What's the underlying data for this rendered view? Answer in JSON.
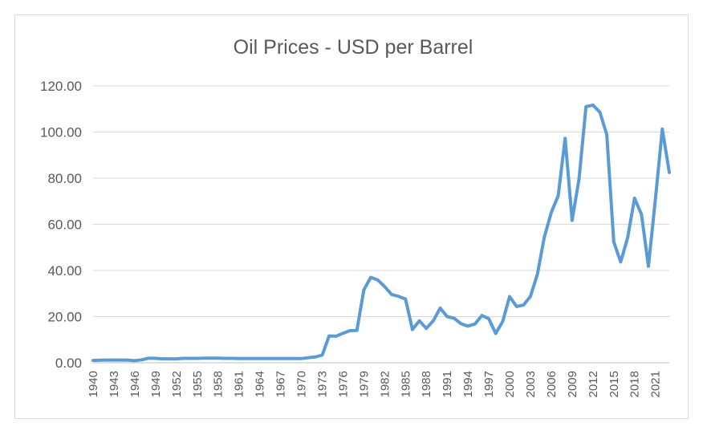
{
  "colors": {
    "series": "#5b9bd5",
    "grid": "#d9d9d9",
    "text": "#595959"
  },
  "chart_data": {
    "type": "line",
    "title": "Oil Prices - USD per Barrel",
    "xlabel": "",
    "ylabel": "",
    "ylim": [
      0,
      120
    ],
    "yticks": [
      "0.00",
      "20.00",
      "40.00",
      "60.00",
      "80.00",
      "100.00",
      "120.00"
    ],
    "xtick_labels": [
      "1940",
      "1943",
      "1946",
      "1949",
      "1952",
      "1955",
      "1958",
      "1961",
      "1964",
      "1967",
      "1970",
      "1973",
      "1976",
      "1979",
      "1982",
      "1985",
      "1988",
      "1991",
      "1994",
      "1997",
      "2000",
      "2003",
      "2006",
      "2009",
      "2012",
      "2015",
      "2018",
      "2021"
    ],
    "grid": true,
    "legend": "none",
    "x": [
      1940,
      1941,
      1942,
      1943,
      1944,
      1945,
      1946,
      1947,
      1948,
      1949,
      1950,
      1951,
      1952,
      1953,
      1954,
      1955,
      1956,
      1957,
      1958,
      1959,
      1960,
      1961,
      1962,
      1963,
      1964,
      1965,
      1966,
      1967,
      1968,
      1969,
      1970,
      1971,
      1972,
      1973,
      1974,
      1975,
      1976,
      1977,
      1978,
      1979,
      1980,
      1981,
      1982,
      1983,
      1984,
      1985,
      1986,
      1987,
      1988,
      1989,
      1990,
      1991,
      1992,
      1993,
      1994,
      1995,
      1996,
      1997,
      1998,
      1999,
      2000,
      2001,
      2002,
      2003,
      2004,
      2005,
      2006,
      2007,
      2008,
      2009,
      2010,
      2011,
      2012,
      2013,
      2014,
      2015,
      2016,
      2017,
      2018,
      2019,
      2020,
      2021,
      2022,
      2023
    ],
    "series": [
      {
        "values": [
          1.0,
          1.1,
          1.2,
          1.2,
          1.2,
          1.1,
          0.9,
          1.3,
          2.0,
          1.9,
          1.7,
          1.7,
          1.7,
          1.9,
          1.9,
          1.9,
          2.0,
          2.0,
          2.0,
          1.9,
          1.9,
          1.8,
          1.8,
          1.8,
          1.8,
          1.8,
          1.8,
          1.8,
          1.8,
          1.8,
          1.8,
          2.2,
          2.5,
          3.3,
          11.6,
          11.5,
          12.8,
          13.9,
          14.0,
          31.6,
          37.0,
          35.9,
          33.0,
          29.6,
          28.8,
          27.6,
          14.4,
          18.2,
          14.9,
          18.2,
          23.7,
          20.0,
          19.3,
          16.9,
          15.9,
          16.8,
          20.5,
          19.1,
          12.7,
          17.9,
          28.7,
          24.4,
          25.0,
          28.8,
          38.3,
          54.5,
          65.1,
          72.4,
          97.3,
          61.7,
          79.6,
          111.0,
          111.7,
          108.6,
          98.9,
          52.4,
          43.7,
          54.2,
          71.3,
          64.2,
          41.8,
          70.9,
          101.3,
          82.5
        ]
      }
    ]
  }
}
